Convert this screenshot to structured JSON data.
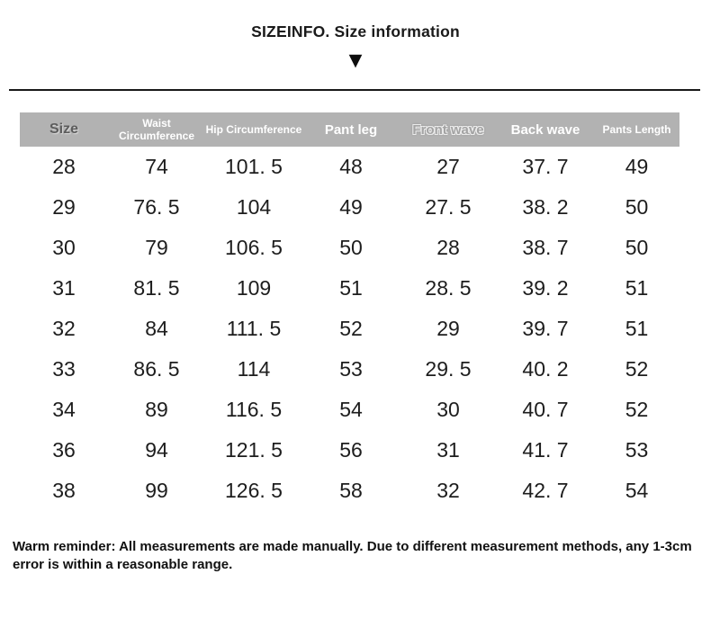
{
  "title": "SIZEINFO. Size information",
  "triangle_icon": "▼",
  "colors": {
    "header_bg": "#b2b2b2",
    "header_text_white": "#ffffff",
    "header_text_dark": "#5c5c5c",
    "body_text": "#1d1d1d",
    "divider": "#191919"
  },
  "table": {
    "columns": [
      {
        "label": "Size",
        "style": "dark"
      },
      {
        "label": "Waist Circumference",
        "style": "small"
      },
      {
        "label": "Hip Circumference",
        "style": "small"
      },
      {
        "label": "Pant leg",
        "style": "large"
      },
      {
        "label": "Front wave",
        "style": "embossed"
      },
      {
        "label": "Back wave",
        "style": "large"
      },
      {
        "label": "Pants Length",
        "style": "small"
      }
    ],
    "rows": [
      [
        "28",
        "74",
        "101. 5",
        "48",
        "27",
        "37. 7",
        "49"
      ],
      [
        "29",
        "76. 5",
        "104",
        "49",
        "27. 5",
        "38. 2",
        "50"
      ],
      [
        "30",
        "79",
        "106. 5",
        "50",
        "28",
        "38. 7",
        "50"
      ],
      [
        "31",
        "81. 5",
        "109",
        "51",
        "28. 5",
        "39. 2",
        "51"
      ],
      [
        "32",
        "84",
        "111. 5",
        "52",
        "29",
        "39. 7",
        "51"
      ],
      [
        "33",
        "86. 5",
        "114",
        "53",
        "29. 5",
        "40. 2",
        "52"
      ],
      [
        "34",
        "89",
        "116. 5",
        "54",
        "30",
        "40. 7",
        "52"
      ],
      [
        "36",
        "94",
        "121. 5",
        "56",
        "31",
        "41. 7",
        "53"
      ],
      [
        "38",
        "99",
        "126. 5",
        "58",
        "32",
        "42. 7",
        "54"
      ]
    ]
  },
  "footer_note": "Warm reminder: All measurements are made manually. Due to different measurement methods, any 1-3cm error is within a reasonable range."
}
